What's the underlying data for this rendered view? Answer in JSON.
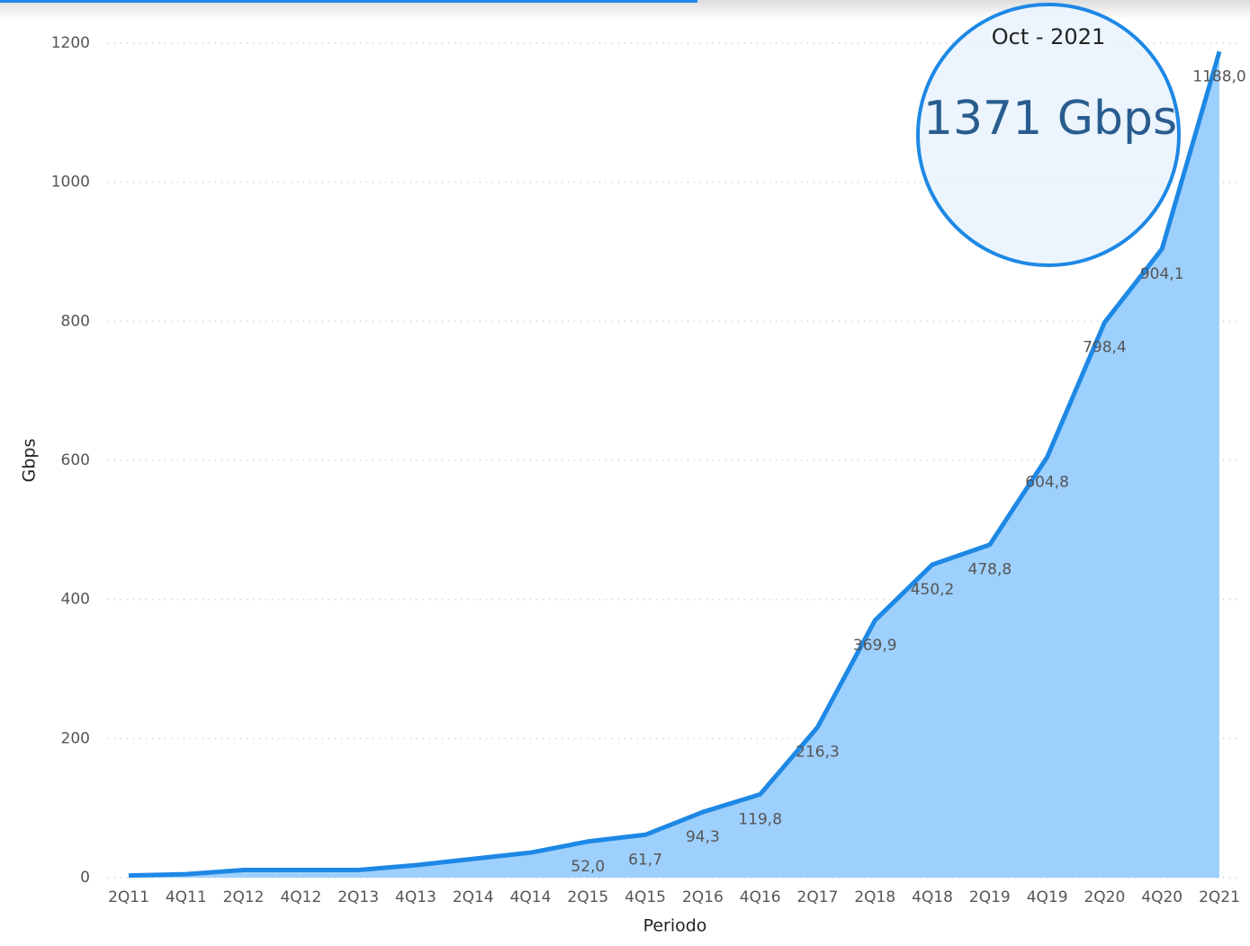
{
  "chart_data": {
    "type": "area",
    "x_label": "Periodo",
    "y_label": "Gbps",
    "annotation": {
      "date": "Oct - 2021",
      "value": "1371 Gbps"
    },
    "categories": [
      "2Q11",
      "4Q11",
      "2Q12",
      "4Q12",
      "2Q13",
      "4Q13",
      "2Q14",
      "4Q14",
      "2Q15",
      "4Q15",
      "2Q16",
      "4Q16",
      "2Q17",
      "2Q18",
      "4Q18",
      "2Q19",
      "4Q19",
      "2Q20",
      "4Q20",
      "2Q21"
    ],
    "values": [
      3,
      5,
      11,
      11,
      11,
      18,
      27,
      36,
      52.0,
      61.7,
      94.3,
      119.8,
      216.3,
      369.9,
      450.2,
      478.8,
      604.8,
      798.4,
      904.1,
      1188.0
    ],
    "value_labels": [
      null,
      null,
      null,
      null,
      null,
      null,
      null,
      null,
      "52,0",
      "61,7",
      "94,3",
      "119,8",
      "216,3",
      "369,9",
      "450,2",
      "478,8",
      "604,8",
      "798,4",
      "904,1",
      "1188,0"
    ],
    "color": "#1e88e5",
    "fill": "#9ed0fd",
    "ylim": [
      0,
      1200
    ],
    "yticks": [
      0,
      200,
      400,
      600,
      800,
      1000,
      1200
    ],
    "grid": true
  }
}
